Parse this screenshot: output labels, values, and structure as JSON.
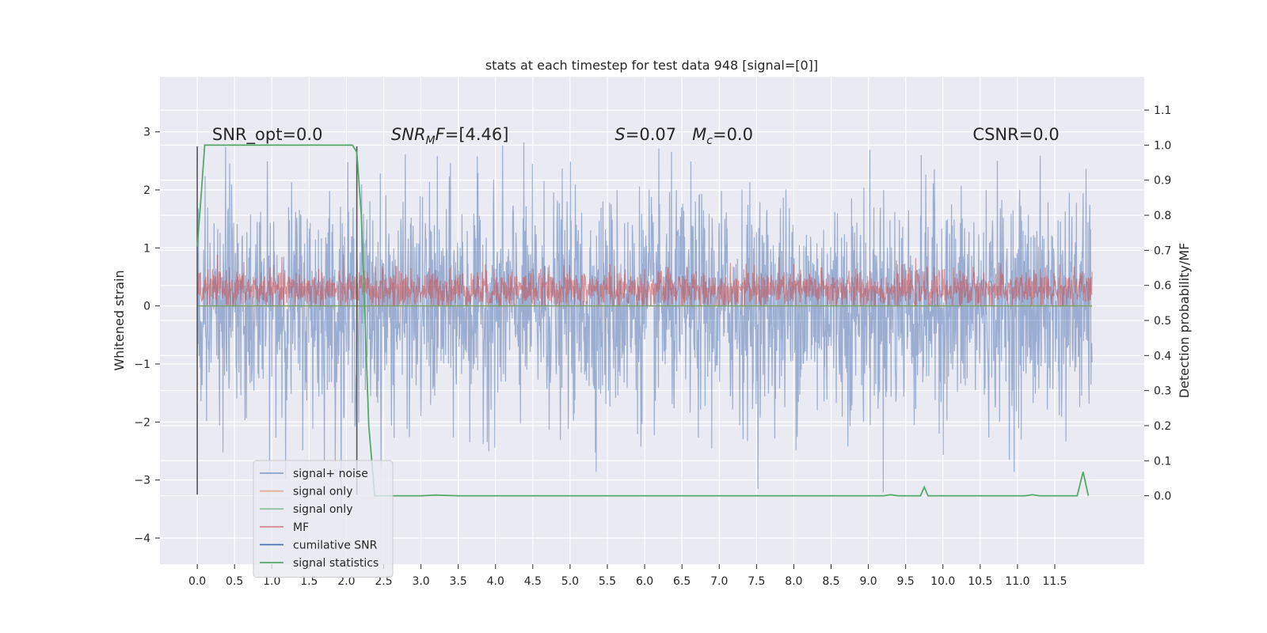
{
  "chart_data": {
    "type": "line",
    "title": "stats at each timestep for test data 948 [signal=[0]]",
    "xlabel": "",
    "ylabel": "Whitened strain",
    "y2label": "Detection probability/MF",
    "xlim": [
      -0.5,
      12.7
    ],
    "ylim": [
      -4.45,
      3.95
    ],
    "y2lim": [
      -0.195,
      1.195
    ],
    "x_ticks": [
      "0.0",
      "0.5",
      "1.0",
      "1.5",
      "2.0",
      "2.5",
      "3.0",
      "3.5",
      "4.0",
      "4.5",
      "5.0",
      "5.5",
      "6.0",
      "6.5",
      "7.0",
      "7.5",
      "8.0",
      "8.5",
      "9.0",
      "9.5",
      "10.0",
      "10.5",
      "11.0",
      "11.5"
    ],
    "y_ticks": [
      "3",
      "2",
      "1",
      "0",
      "−1",
      "−2",
      "−3",
      "−4"
    ],
    "y2_ticks": [
      "1.1",
      "1.0",
      "0.9",
      "0.8",
      "0.7",
      "0.6",
      "0.5",
      "0.4",
      "0.3",
      "0.2",
      "0.1",
      "0.0"
    ],
    "grid": true,
    "legend_position": "lower-left",
    "annotations": [
      {
        "text": "SNR_opt=0.0",
        "x": 0.2
      },
      {
        "text": "SNR_MF=[4.46]",
        "x": 2.6
      },
      {
        "text": "S=0.07   M_c=0.0",
        "x": 5.6
      },
      {
        "text": "CSNR=0.0",
        "x": 10.4
      }
    ],
    "vlines": [
      0.0,
      2.14
    ],
    "series": [
      {
        "name": "signal+ noise",
        "color": "#4c72b0",
        "x_range": [
          0.0,
          12.0
        ],
        "envelope_abs_max": 3.6,
        "typical_abs_max": 2.1,
        "description": "white noise, alpha 0.5"
      },
      {
        "name": "signal only",
        "color": "#dd8452",
        "values_const": 0.0
      },
      {
        "name": "signal only",
        "color": "#55a868",
        "values_const": 0.0
      },
      {
        "name": "MF",
        "color": "#c44e52",
        "x_range": [
          0.0,
          12.0
        ],
        "range_y": [
          0.0,
          0.95
        ]
      },
      {
        "name": "cumilative SNR",
        "color": "#4c72b0"
      },
      {
        "name": "signal statistics",
        "color": "#55a868",
        "axis": "right",
        "x": [
          0.0,
          0.05,
          0.1,
          0.2,
          0.3,
          0.5,
          1.0,
          1.5,
          2.0,
          2.08,
          2.14,
          2.2,
          2.25,
          2.3,
          2.38,
          3.0,
          3.2,
          3.5,
          4.0,
          9.2,
          9.3,
          9.4,
          9.7,
          9.75,
          9.8,
          10.0,
          11.0,
          11.1,
          11.2,
          11.3,
          11.8,
          11.88,
          11.95
        ],
        "values": [
          0.71,
          0.85,
          1.0,
          1.0,
          1.0,
          1.0,
          1.0,
          1.0,
          1.0,
          1.0,
          0.98,
          0.8,
          0.5,
          0.2,
          0.0,
          0.0,
          0.002,
          0.0,
          0.0,
          0.0,
          0.003,
          0.0,
          0.0,
          0.025,
          0.0,
          0.0,
          0.0,
          0.0,
          0.003,
          0.0,
          0.0,
          0.068,
          0.0
        ]
      }
    ]
  }
}
